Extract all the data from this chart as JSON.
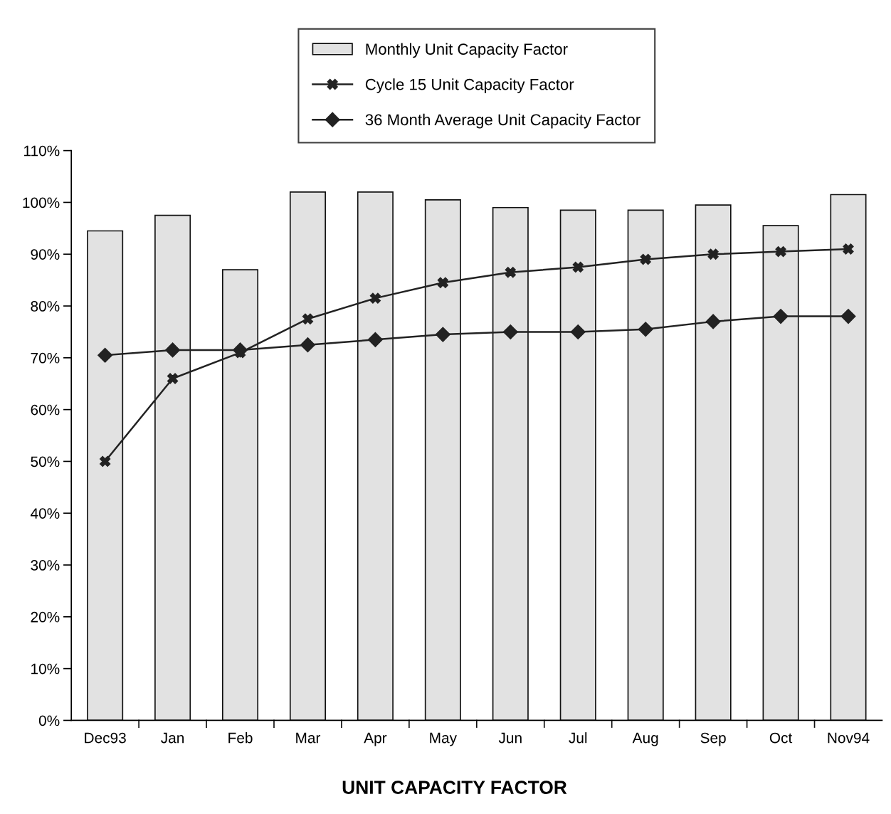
{
  "chart_data": {
    "type": "bar",
    "title": "UNIT CAPACITY FACTOR",
    "categories": [
      "Dec93",
      "Jan",
      "Feb",
      "Mar",
      "Apr",
      "May",
      "Jun",
      "Jul",
      "Aug",
      "Sep",
      "Oct",
      "Nov94"
    ],
    "series": [
      {
        "name": "Monthly Unit Capacity Factor",
        "color": "#e2e2e2",
        "values": [
          94.5,
          97.5,
          87,
          102,
          102,
          100.5,
          99,
          98.5,
          98.5,
          99.5,
          95.5,
          101.5
        ]
      },
      {
        "name": "Cycle 15 Unit Capacity Factor",
        "type": "line",
        "marker": "cross",
        "color": "#222222",
        "values": [
          50,
          66,
          71,
          77.5,
          81.5,
          84.5,
          86.5,
          87.5,
          89,
          90,
          90.5,
          91
        ]
      },
      {
        "name": "36 Month Average Unit Capacity Factor",
        "type": "line",
        "marker": "diamond",
        "color": "#222222",
        "values": [
          70.5,
          71.5,
          71.5,
          72.5,
          73.5,
          74.5,
          75,
          75,
          75.5,
          77,
          78,
          78
        ]
      }
    ],
    "ylim": [
      0,
      110
    ],
    "yticks": [
      {
        "value": 0,
        "label": "0%"
      },
      {
        "value": 10,
        "label": "10%"
      },
      {
        "value": 20,
        "label": "20%"
      },
      {
        "value": 30,
        "label": "30%"
      },
      {
        "value": 40,
        "label": "40%"
      },
      {
        "value": 50,
        "label": "50%"
      },
      {
        "value": 60,
        "label": "60%"
      },
      {
        "value": 70,
        "label": "70%"
      },
      {
        "value": 80,
        "label": "80%"
      },
      {
        "value": 90,
        "label": "90%"
      },
      {
        "value": 100,
        "label": "100%"
      },
      {
        "value": 110,
        "label": "110%"
      }
    ],
    "grid": false,
    "legend": "top",
    "line_style": "solid"
  }
}
